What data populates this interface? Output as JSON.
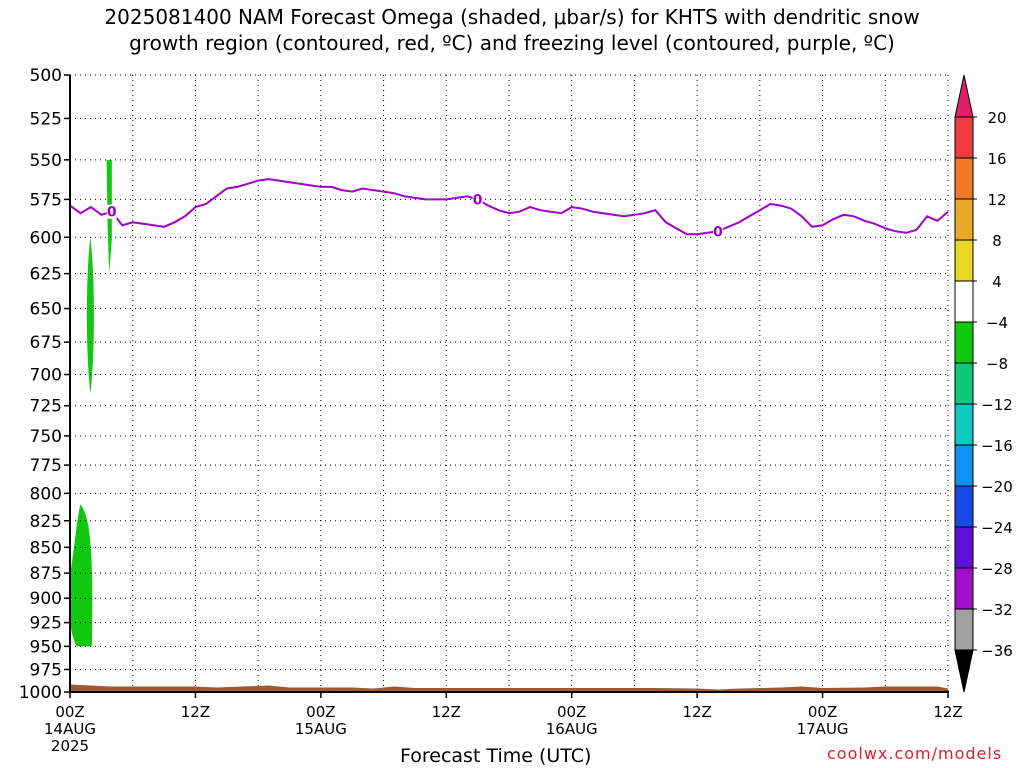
{
  "title": {
    "line1": "2025081400 NAM Forecast Omega (shaded, μbar/s) for KHTS with dendritic snow",
    "line2": "growth region (contoured, red, ºC) and freezing level (contoured, purple, ºC)"
  },
  "x_axis_title": "Forecast Time (UTC)",
  "credit": "coolwx.com/models",
  "chart_data": {
    "type": "area",
    "title": "2025081400 NAM Forecast Omega (shaded, μbar/s) for KHTS with dendritic snow growth region (contoured, red, ºC) and freezing level (contoured, purple, ºC)",
    "xlabel": "Forecast Time (UTC)",
    "ylabel": "",
    "x_unit": "forecast hour",
    "xlim": [
      0,
      84
    ],
    "x_ticks": [
      {
        "x": 0,
        "label": "00Z",
        "date": "14AUG",
        "year": "2025"
      },
      {
        "x": 12,
        "label": "12Z"
      },
      {
        "x": 24,
        "label": "00Z",
        "date": "15AUG"
      },
      {
        "x": 36,
        "label": "12Z"
      },
      {
        "x": 48,
        "label": "00Z",
        "date": "16AUG"
      },
      {
        "x": 60,
        "label": "12Z"
      },
      {
        "x": 72,
        "label": "00Z",
        "date": "17AUG"
      },
      {
        "x": 84,
        "label": "12Z"
      }
    ],
    "y_unit": "hPa",
    "ylim": [
      1000,
      500
    ],
    "y_ticks": [
      500,
      525,
      550,
      575,
      600,
      625,
      650,
      675,
      700,
      725,
      750,
      775,
      800,
      825,
      850,
      875,
      900,
      925,
      950,
      975,
      1000
    ],
    "grid": true,
    "colorbar": {
      "labels": [
        "20",
        "16",
        "12",
        "8",
        "4",
        "−4",
        "−8",
        "−12",
        "−16",
        "−20",
        "−24",
        "−28",
        "−32",
        "−36"
      ],
      "colors": [
        "#e0206a",
        "#f03c3c",
        "#f07828",
        "#e8a828",
        "#e8d828",
        "#ffffff",
        "#10c810",
        "#10c878",
        "#10c8c0",
        "#1090f0",
        "#1848e8",
        "#6010d8",
        "#a010c8",
        "#a0a0a0",
        "#000000"
      ]
    },
    "freezing_level": {
      "label": "0",
      "color": "#a000c8",
      "x": [
        0,
        1,
        2,
        3,
        4,
        5,
        6,
        7,
        8,
        9,
        10,
        11,
        12,
        13,
        14,
        15,
        16,
        17,
        18,
        19,
        20,
        21,
        22,
        23,
        24,
        25,
        26,
        27,
        28,
        29,
        30,
        31,
        32,
        33,
        34,
        35,
        36,
        37,
        38,
        39,
        40,
        41,
        42,
        43,
        44,
        45,
        46,
        47,
        48,
        49,
        50,
        51,
        52,
        53,
        54,
        55,
        56,
        57,
        58,
        59,
        60,
        61,
        62,
        63,
        64,
        65,
        66,
        67,
        68,
        69,
        70,
        71,
        72,
        73,
        74,
        75,
        76,
        77,
        78,
        79,
        80,
        81,
        82,
        83,
        84
      ],
      "y": [
        579,
        584,
        580,
        585,
        583,
        592,
        590,
        591,
        592,
        593,
        590,
        586,
        580,
        578,
        573,
        568,
        567,
        565,
        563,
        562,
        563,
        564,
        565,
        566,
        567,
        567,
        569,
        570,
        568,
        569,
        570,
        571,
        573,
        574,
        575,
        575,
        575,
        574,
        573,
        575,
        579,
        582,
        584,
        583,
        580,
        582,
        583,
        584,
        580,
        581,
        583,
        584,
        585,
        586,
        585,
        584,
        582,
        590,
        594,
        598,
        598,
        597,
        596,
        593,
        590,
        586,
        582,
        578,
        579,
        581,
        586,
        593,
        592,
        588,
        585,
        586,
        589,
        591,
        594,
        596,
        597,
        595,
        586,
        589,
        583
      ]
    },
    "omega_regions": [
      {
        "value_range": "-8 to -4",
        "color": "#10c810",
        "x_range": [
          3.5,
          4.0
        ],
        "p_range": [
          550,
          625
        ]
      },
      {
        "value_range": "-8 to -4",
        "color": "#10c810",
        "x_range": [
          1.5,
          2.4
        ],
        "p_range": [
          600,
          715
        ]
      },
      {
        "value_range": "-8 to -4",
        "color": "#10c810",
        "x_range": [
          0,
          2.2
        ],
        "p_range": [
          810,
          950
        ]
      }
    ],
    "terrain": {
      "color": "#a05a32",
      "pressure": 995
    }
  }
}
